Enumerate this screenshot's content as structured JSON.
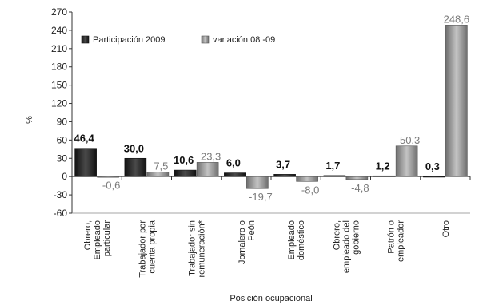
{
  "chart_data": {
    "type": "bar",
    "xlabel": "Posición ocupacional",
    "ylabel": "%",
    "ylim": [
      -60,
      270
    ],
    "yticks": [
      270,
      240,
      210,
      180,
      150,
      120,
      90,
      60,
      30,
      0,
      -30,
      -60
    ],
    "legend_placement": "top-left",
    "grid": false,
    "categories": [
      "Obrero, Empleado particular",
      "Trabajador por cuenta propia",
      "Trabajador sin remuneración*",
      "Jornalero o Peón",
      "Empleado doméstico",
      "Obrero, empleado del gobierno",
      "Patrón o empleador",
      "Otro"
    ],
    "category_lines": [
      [
        "Obrero,",
        "Empleado",
        "particular"
      ],
      [
        "Trabajador por",
        "cuenta propia"
      ],
      [
        "Trabajador sin",
        "remuneración*"
      ],
      [
        "Jornalero o",
        "Peón"
      ],
      [
        "Empleado",
        "doméstico"
      ],
      [
        "Obrero,",
        "empleado del",
        "gobierno"
      ],
      [
        "Patrón o",
        "empleador"
      ],
      [
        "Otro"
      ]
    ],
    "series": [
      {
        "name": "Participación 2009",
        "color": "#2b2b2b",
        "values": [
          46.4,
          30.0,
          10.6,
          6.0,
          3.7,
          1.7,
          1.2,
          0.3
        ],
        "labels": [
          "46,4",
          "30,0",
          "10,6",
          "6,0",
          "3,7",
          "1,7",
          "1,2",
          "0,3"
        ]
      },
      {
        "name": "variación 08 -09",
        "color": "#8f8f8f",
        "values": [
          -0.6,
          7.5,
          23.3,
          -19.7,
          -8.0,
          -4.8,
          50.3,
          248.6
        ],
        "labels": [
          "-0,6",
          "7,5",
          "23,3",
          "-19,7",
          "-8,0",
          "-4,8",
          "50,3",
          "248,6"
        ]
      }
    ]
  }
}
